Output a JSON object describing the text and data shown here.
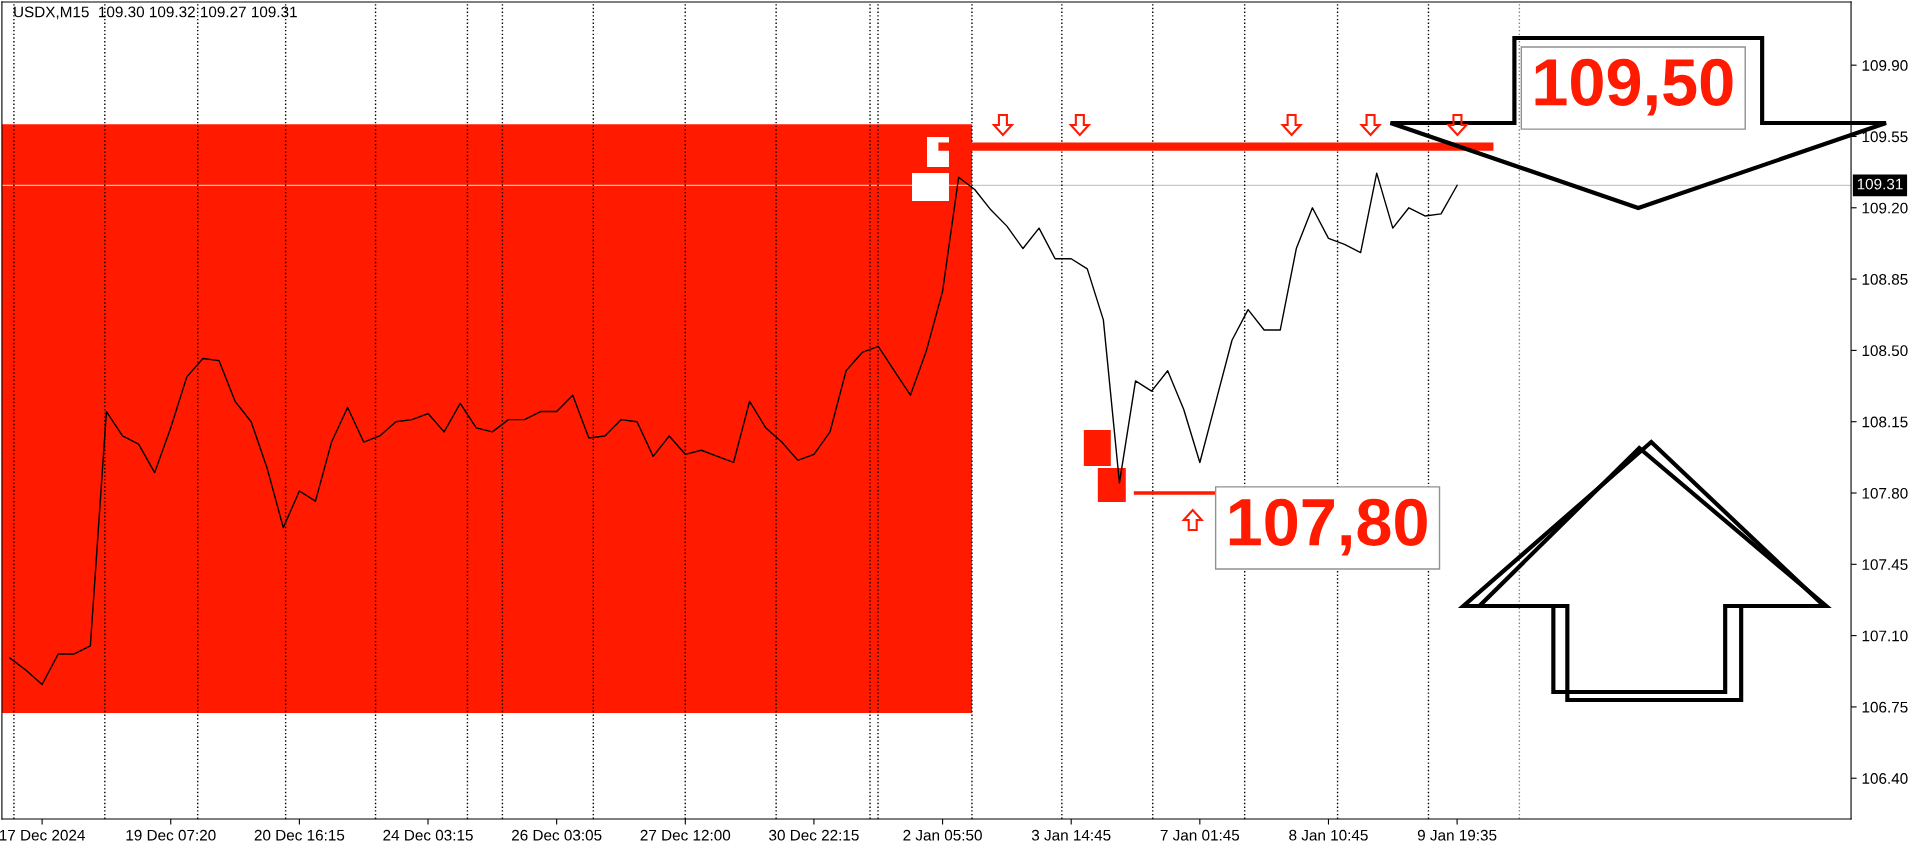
{
  "chart_data": {
    "type": "line",
    "title": "USDX,M15  109.30 109.32 109.27 109.31",
    "categories": [
      null,
      null,
      "17 Dec 2024",
      null,
      null,
      null,
      null,
      null,
      null,
      null,
      "19 Dec 07:20",
      null,
      null,
      null,
      null,
      null,
      null,
      null,
      "20 Dec 16:15",
      null,
      null,
      null,
      null,
      null,
      null,
      null,
      "24 Dec 03:15",
      null,
      null,
      null,
      null,
      null,
      null,
      null,
      "26 Dec 03:05",
      null,
      null,
      null,
      null,
      null,
      null,
      null,
      "27 Dec 12:00",
      null,
      null,
      null,
      null,
      null,
      null,
      null,
      "30 Dec 22:15",
      null,
      null,
      null,
      null,
      null,
      null,
      null,
      "2 Jan 05:50",
      null,
      null,
      null,
      null,
      null,
      null,
      null,
      "3 Jan 14:45",
      null,
      null,
      null,
      null,
      null,
      null,
      null,
      "7 Jan 01:45",
      null,
      null,
      null,
      null,
      null,
      null,
      null,
      "8 Jan 10:45",
      null,
      null,
      null,
      null,
      null,
      null,
      null,
      "9 Jan 19:35",
      null,
      null,
      null,
      null,
      null,
      null,
      null,
      null,
      null,
      null,
      null,
      null,
      null,
      null,
      null,
      null,
      null,
      null,
      null,
      null,
      null,
      null,
      null,
      null
    ],
    "ylim": [
      106.2,
      110.21
    ],
    "yticks": [
      {
        "value": 106.4,
        "label": "106.40"
      },
      {
        "value": 106.75,
        "label": "106.75"
      },
      {
        "value": 107.1,
        "label": "107.10"
      },
      {
        "value": 107.45,
        "label": "107.45"
      },
      {
        "value": 107.8,
        "label": "107.80"
      },
      {
        "value": 108.15,
        "label": "108.15"
      },
      {
        "value": 108.5,
        "label": "108.50"
      },
      {
        "value": 108.85,
        "label": "108.85"
      },
      {
        "value": 109.2,
        "label": "109.20"
      },
      {
        "value": 109.55,
        "label": "109.55"
      },
      {
        "value": 109.9,
        "label": "109.90"
      }
    ],
    "grid": false,
    "legend": false,
    "marker": "none",
    "line_style": "solid",
    "series": [
      {
        "color": "#000000",
        "values": [
          106.99,
          106.93,
          106.86,
          107.01,
          107.01,
          107.05,
          108.2,
          108.08,
          108.04,
          107.9,
          108.12,
          108.37,
          108.46,
          108.45,
          108.25,
          108.15,
          107.92,
          107.63,
          107.81,
          107.76,
          108.05,
          108.22,
          108.05,
          108.08,
          108.15,
          108.16,
          108.19,
          108.1,
          108.24,
          108.12,
          108.1,
          108.16,
          108.16,
          108.2,
          108.2,
          108.28,
          108.07,
          108.08,
          108.16,
          108.15,
          107.98,
          108.08,
          107.99,
          108.01,
          107.98,
          107.95,
          108.25,
          108.12,
          108.05,
          107.96,
          107.99,
          108.1,
          108.4,
          108.49,
          108.52,
          108.4,
          108.28,
          108.5,
          108.79,
          109.35,
          109.29,
          109.19,
          109.11,
          109.0,
          109.1,
          108.95,
          108.95,
          108.9,
          108.65,
          107.85,
          108.35,
          108.3,
          108.4,
          108.21,
          107.95,
          108.25,
          108.55,
          108.7,
          108.6,
          108.6,
          109.0,
          109.2,
          109.05,
          109.02,
          108.98,
          109.37,
          109.1,
          109.2,
          109.16,
          109.17,
          109.31,
          null,
          null,
          null,
          null,
          null,
          null,
          null,
          null,
          null,
          null,
          null,
          null,
          null,
          null,
          null,
          null,
          null,
          null,
          null,
          null,
          null,
          null,
          null,
          null
        ]
      },
      {
        "type": "line",
        "color": "#ff1a00",
        "values": [
          null,
          null,
          null,
          null,
          null,
          null,
          null,
          null,
          null,
          null,
          null,
          null,
          null,
          null,
          null,
          null,
          null,
          null,
          null,
          null,
          null,
          null,
          null,
          null,
          null,
          null,
          null,
          null,
          null,
          null,
          null,
          null,
          null,
          null,
          null,
          null,
          null,
          null,
          null,
          null,
          null,
          null,
          null,
          null,
          null,
          null,
          null,
          null,
          null,
          null,
          null,
          null,
          null,
          null,
          null,
          null,
          null,
          null,
          109.5,
          109.5,
          109.5,
          109.5,
          109.5,
          109.5,
          109.5,
          109.5,
          109.5,
          109.5,
          109.5,
          109.5,
          109.5,
          109.5,
          109.5,
          109.5,
          109.5,
          109.5,
          109.5,
          109.5,
          109.5,
          109.5,
          109.5,
          109.5,
          109.5,
          109.5,
          109.5,
          109.5,
          109.5,
          109.5,
          109.5,
          109.5,
          109.5,
          109.5,
          109.5,
          null,
          null,
          null,
          null,
          null,
          null,
          null,
          null,
          null,
          null,
          null,
          null,
          null,
          null,
          null,
          null,
          null,
          null,
          null,
          null,
          null,
          null
        ]
      },
      {
        "type": "line",
        "color": "#ff1a00",
        "values": [
          null,
          null,
          null,
          null,
          null,
          null,
          null,
          null,
          null,
          null,
          null,
          null,
          null,
          null,
          null,
          null,
          null,
          null,
          null,
          null,
          null,
          null,
          null,
          null,
          null,
          null,
          null,
          null,
          null,
          null,
          null,
          null,
          null,
          null,
          null,
          null,
          null,
          null,
          null,
          null,
          null,
          null,
          null,
          null,
          null,
          null,
          null,
          null,
          null,
          null,
          null,
          null,
          null,
          null,
          null,
          null,
          null,
          null,
          null,
          null,
          null,
          null,
          null,
          null,
          null,
          null,
          null,
          null,
          null,
          null,
          107.8,
          107.8,
          107.8,
          107.8,
          107.8,
          107.8,
          null,
          null,
          null,
          null,
          null,
          null,
          null,
          null,
          null,
          null,
          null,
          null,
          null,
          null,
          null,
          null,
          null,
          null,
          null,
          null,
          null,
          null,
          null,
          null,
          null,
          null,
          null,
          null,
          null,
          null,
          null,
          null,
          null,
          null,
          null,
          null,
          null,
          null,
          null
        ]
      }
    ],
    "bands": [
      {
        "axis": "y",
        "from": 106.72,
        "to": 109.61,
        "color": "#ff1a00"
      }
    ],
    "ref_lines": [
      {
        "axis": "y",
        "value": 109.31,
        "label": "109.31",
        "color": "#c8c8c8",
        "line_style": "solid"
      }
    ],
    "annotations": [
      "109,50",
      "107,80"
    ]
  }
}
